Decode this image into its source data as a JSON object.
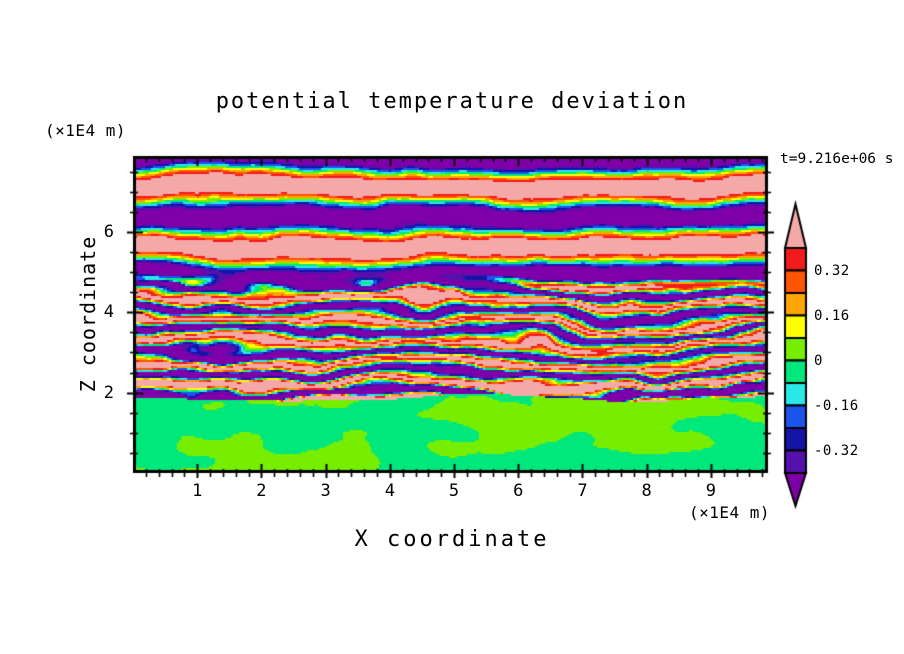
{
  "chart_data": {
    "type": "heatmap",
    "title": "potential temperature deviation",
    "timestamp": "t=9.216e+06 s",
    "xlabel": "X coordinate",
    "ylabel": "Z coordinate",
    "x_units_label": "(×1E4 m)",
    "z_units_label": "(×1E4 m)",
    "x_range": [
      0,
      9.89
    ],
    "z_range": [
      0,
      7.89
    ],
    "x_major_ticks": [
      "1",
      "2",
      "3",
      "4",
      "5",
      "6",
      "7",
      "8",
      "9"
    ],
    "x_minor_tick_step": 0.2,
    "z_major_ticks": [
      "2",
      "4",
      "6"
    ],
    "z_minor_tick_step": 0.5,
    "grid": false,
    "colorbar": {
      "orientation": "vertical",
      "value_range": [
        -0.4,
        0.4
      ],
      "cell_span": 0.08,
      "tick_labels": [
        {
          "text": "0.32",
          "value": 0.32
        },
        {
          "text": "0.16",
          "value": 0.16
        },
        {
          "text": "0",
          "value": 0.0
        },
        {
          "text": "-0.16",
          "value": -0.16
        },
        {
          "text": "-0.32",
          "value": -0.32
        }
      ],
      "palette": [
        {
          "name": "above +0.40 (arrow)",
          "hex": "#F5A8A8"
        },
        {
          "name": "+0.32 to +0.40",
          "hex": "#F21B1B"
        },
        {
          "name": "+0.24 to +0.32",
          "hex": "#FF5400"
        },
        {
          "name": "+0.16 to +0.24",
          "hex": "#FFA505"
        },
        {
          "name": "+0.08 to +0.16",
          "hex": "#FFFF00"
        },
        {
          "name": "0 to +0.08",
          "hex": "#77EE00"
        },
        {
          "name": "-0.08 to 0",
          "hex": "#00E87C"
        },
        {
          "name": "-0.16 to -0.08",
          "hex": "#28E8E8"
        },
        {
          "name": "-0.24 to -0.16",
          "hex": "#1C55EE"
        },
        {
          "name": "-0.32 to -0.24",
          "hex": "#1414A8"
        },
        {
          "name": "-0.40 to -0.32",
          "hex": "#5511AD"
        },
        {
          "name": "below -0.40 (arrow)",
          "hex": "#7F00A8"
        }
      ]
    },
    "field_structure": {
      "description": "stratified shear-flow potential temperature deviation: large-amplitude horizontal wave bands (pink/purple, beyond ±0.4) above z≈4.8; fine tilted turbulent layering spanning the full colour range for 1.9<z<4.8 with an intense thin band just above the interface; nearly uniform weak greens (|dev|<0.08) below the sharp interface at z≈1.9 with large swirling eddies",
      "interface_z": 1.9,
      "band_wavelength_top": 1.45,
      "layer_wavelength_mid": 0.52,
      "bottom_levels": [
        0.04,
        -0.04
      ],
      "eddy_centers_x": [
        1.55,
        4.95,
        8.55
      ]
    }
  }
}
